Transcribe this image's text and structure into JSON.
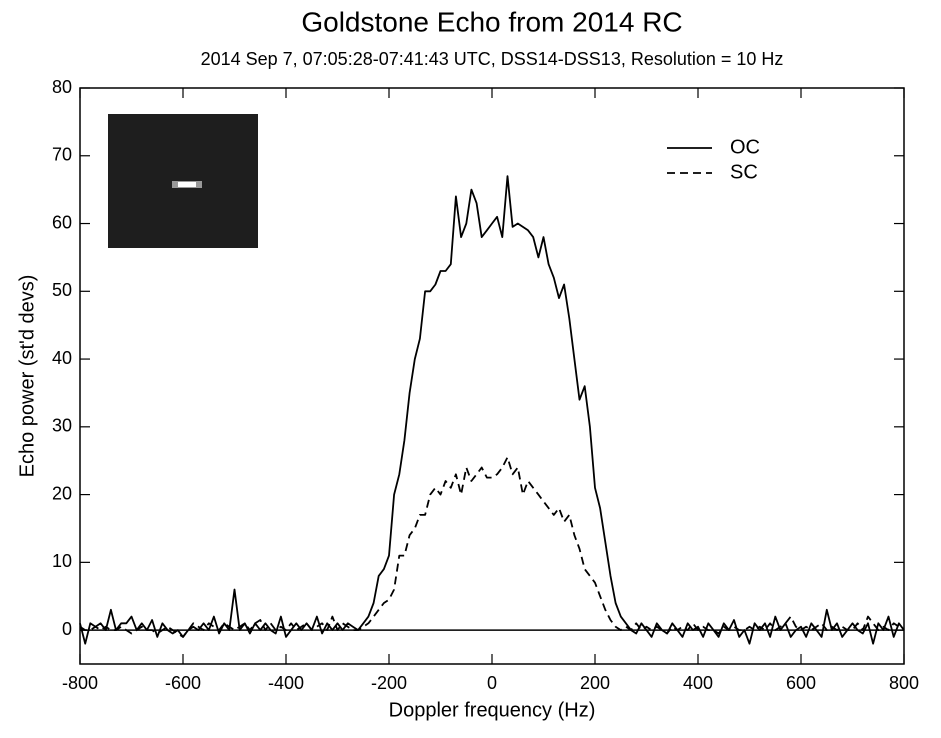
{
  "chart_data": {
    "type": "line",
    "title": "Goldstone Echo from  2014 RC",
    "subtitle": "2014 Sep 7, 07:05:28-07:41:43 UTC, DSS14-DSS13, Resolution = 10 Hz",
    "xlabel": "Doppler frequency (Hz)",
    "ylabel": "Echo power (st'd devs)",
    "xlim": [
      -800,
      800
    ],
    "ylim": [
      -5,
      80
    ],
    "xticks": [
      -800,
      -600,
      -400,
      -200,
      0,
      200,
      400,
      600,
      800
    ],
    "yticks": [
      0,
      10,
      20,
      30,
      40,
      50,
      60,
      70,
      80
    ],
    "x": [
      -800,
      -790,
      -780,
      -770,
      -760,
      -750,
      -740,
      -730,
      -720,
      -710,
      -700,
      -690,
      -680,
      -670,
      -660,
      -650,
      -640,
      -630,
      -620,
      -610,
      -600,
      -590,
      -580,
      -570,
      -560,
      -550,
      -540,
      -530,
      -520,
      -510,
      -500,
      -490,
      -480,
      -470,
      -460,
      -450,
      -440,
      -430,
      -420,
      -410,
      -400,
      -390,
      -380,
      -370,
      -360,
      -350,
      -340,
      -330,
      -320,
      -310,
      -300,
      -290,
      -280,
      -270,
      -260,
      -250,
      -240,
      -230,
      -220,
      -210,
      -200,
      -190,
      -180,
      -170,
      -160,
      -150,
      -140,
      -130,
      -120,
      -110,
      -100,
      -90,
      -80,
      -70,
      -60,
      -50,
      -40,
      -30,
      -20,
      -10,
      0,
      10,
      20,
      30,
      40,
      50,
      60,
      70,
      80,
      90,
      100,
      110,
      120,
      130,
      140,
      150,
      160,
      170,
      180,
      190,
      200,
      210,
      220,
      230,
      240,
      250,
      260,
      270,
      280,
      290,
      300,
      310,
      320,
      330,
      340,
      350,
      360,
      370,
      380,
      390,
      400,
      410,
      420,
      430,
      440,
      450,
      460,
      470,
      480,
      490,
      500,
      510,
      520,
      530,
      540,
      550,
      560,
      570,
      580,
      590,
      600,
      610,
      620,
      630,
      640,
      650,
      660,
      670,
      680,
      690,
      700,
      710,
      720,
      730,
      740,
      750,
      760,
      770,
      780,
      790,
      800
    ],
    "series": [
      {
        "name": "OC",
        "color": "#000000",
        "linestyle": "solid",
        "values": [
          1,
          -2,
          1,
          0.5,
          1,
          0,
          3,
          0,
          1,
          1,
          2,
          0,
          1,
          0,
          1.5,
          -1,
          1,
          0,
          -0.5,
          0,
          -1,
          0,
          0.5,
          0,
          1,
          0,
          2,
          -0.5,
          1,
          0,
          6,
          0,
          1,
          -0.5,
          1,
          0,
          1,
          0,
          -0.5,
          2,
          -1,
          0,
          1,
          0,
          1,
          0,
          2,
          -0.5,
          1,
          0,
          1,
          0,
          1,
          0.5,
          0,
          1,
          2,
          4,
          8,
          9,
          11,
          20,
          23,
          28,
          35,
          40,
          43,
          50,
          50,
          51,
          53,
          53,
          54,
          64,
          58,
          60,
          65,
          63,
          58,
          59,
          60,
          61,
          58,
          67,
          59.5,
          60,
          59.5,
          59,
          58,
          55,
          58,
          54,
          52,
          49,
          51,
          46,
          40,
          34,
          36,
          30,
          21,
          18,
          13,
          8,
          4,
          2,
          1,
          0,
          -0.5,
          1,
          0,
          -1,
          1,
          0,
          -0.5,
          1,
          0,
          -1,
          1,
          0,
          0.5,
          -1,
          1,
          0,
          -1,
          1,
          0,
          1.5,
          -1,
          0,
          -2,
          1,
          0,
          1,
          -1,
          2,
          0,
          1,
          -1,
          0,
          0.5,
          -1,
          1,
          0,
          -1,
          3,
          0,
          1,
          -1,
          0,
          1,
          0,
          -0.5,
          1,
          -2,
          1,
          0,
          2,
          -1,
          1,
          0
        ]
      },
      {
        "name": "SC",
        "color": "#000000",
        "linestyle": "dashed",
        "values": [
          0.5,
          0,
          0,
          0.5,
          0,
          0.5,
          0,
          0,
          0.5,
          0,
          -0.5,
          0,
          0.5,
          0,
          0,
          -0.5,
          0,
          0.5,
          0,
          -0.5,
          -1,
          0,
          1,
          0.5,
          0,
          1,
          0.5,
          0,
          1,
          0.5,
          0,
          0.5,
          1,
          0,
          1,
          1.5,
          0,
          1,
          0,
          0.5,
          0,
          1,
          0,
          0.5,
          1,
          0,
          0.5,
          1,
          0,
          2,
          0,
          1,
          0.5,
          0,
          0,
          0.5,
          1,
          2,
          3,
          4,
          4.5,
          6,
          11,
          11,
          14,
          15,
          17,
          17,
          20,
          21,
          20,
          22,
          21,
          23,
          20,
          24,
          22,
          23,
          24,
          22.5,
          22.5,
          23,
          24,
          25.5,
          23,
          24,
          20,
          22,
          21,
          20,
          19,
          18,
          17,
          18,
          16,
          17,
          14,
          12,
          9,
          8,
          7,
          5,
          3,
          1.5,
          0.5,
          0,
          0.5,
          0,
          1,
          0,
          0.5,
          0,
          0.5,
          0,
          -0.5,
          0.5,
          0,
          0.5,
          0,
          1,
          0,
          0.5,
          0,
          0,
          -0.5,
          0.5,
          0,
          0.5,
          0,
          0,
          0.5,
          0,
          0.5,
          0,
          1,
          0,
          0.5,
          1,
          2,
          0.5,
          0,
          0.5,
          0,
          0.5,
          1,
          0,
          0.5,
          0,
          0.5,
          0,
          0,
          1,
          0,
          2,
          1,
          0,
          0.5,
          0,
          1,
          0.5,
          0
        ]
      }
    ]
  }
}
